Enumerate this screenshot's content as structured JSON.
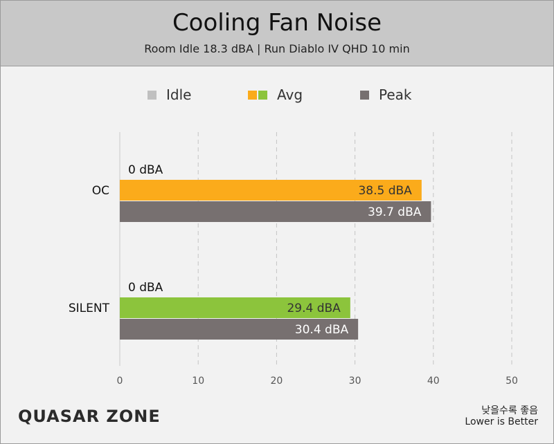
{
  "title": "Cooling Fan Noise",
  "subtitle": "Room Idle 18.3 dBA  |  Run Diablo IV QHD 10 min",
  "legend": {
    "idle_label": "Idle",
    "avg_label": "Avg",
    "peak_label": "Peak"
  },
  "footer": {
    "logo": "QUASAR ZONE",
    "note_ko": "낮을수록 좋음",
    "note_en": "Lower is Better"
  },
  "colors": {
    "idle": "#c0c0c0",
    "oc_avg": "#fbab1b",
    "silent_avg": "#8cc43c",
    "peak": "#777070"
  },
  "chart_data": {
    "type": "bar",
    "orientation": "horizontal",
    "title": "Cooling Fan Noise",
    "subtitle": "Room Idle 18.3 dBA  |  Run Diablo IV QHD 10 min",
    "categories": [
      "OC",
      "SILENT"
    ],
    "series": [
      {
        "name": "Idle",
        "values": [
          0,
          0
        ],
        "labels": [
          "0 dBA",
          "0 dBA"
        ]
      },
      {
        "name": "Avg",
        "values": [
          38.5,
          29.4
        ],
        "labels": [
          "38.5 dBA",
          "29.4 dBA"
        ]
      },
      {
        "name": "Peak",
        "values": [
          39.7,
          30.4
        ],
        "labels": [
          "39.7 dBA",
          "30.4 dBA"
        ]
      }
    ],
    "xlim": [
      0,
      50
    ],
    "xticks": [
      0,
      10,
      20,
      30,
      40,
      50
    ],
    "grid": "vertical-dashed",
    "legend_position": "top-center"
  }
}
